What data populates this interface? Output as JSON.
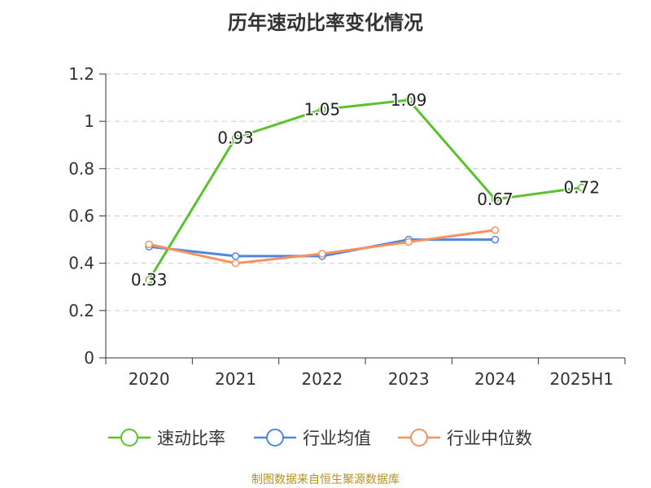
{
  "chart_data": {
    "type": "line",
    "title": "历年速动比率变化情况",
    "categories": [
      "2020",
      "2021",
      "2022",
      "2023",
      "2024",
      "2025H1"
    ],
    "ylim": [
      0,
      1.2
    ],
    "yticks": [
      "0",
      "0.2",
      "0.4",
      "0.6",
      "0.8",
      "1",
      "1.2"
    ],
    "grid": true,
    "legend_position": "bottom",
    "series": [
      {
        "name": "速动比率",
        "color": "#5cc12e",
        "values": [
          0.33,
          0.93,
          1.05,
          1.09,
          0.67,
          0.72
        ],
        "labels": [
          "0.33",
          "0.93",
          "1.05",
          "1.09",
          "0.67",
          "0.72"
        ]
      },
      {
        "name": "行业均值",
        "color": "#5085e0",
        "values": [
          0.47,
          0.43,
          0.43,
          0.5,
          0.5,
          null
        ]
      },
      {
        "name": "行业中位数",
        "color": "#f5935f",
        "values": [
          0.48,
          0.4,
          0.44,
          0.49,
          0.54,
          null
        ]
      }
    ]
  },
  "source_note": "制图数据来自恒生聚源数据库"
}
